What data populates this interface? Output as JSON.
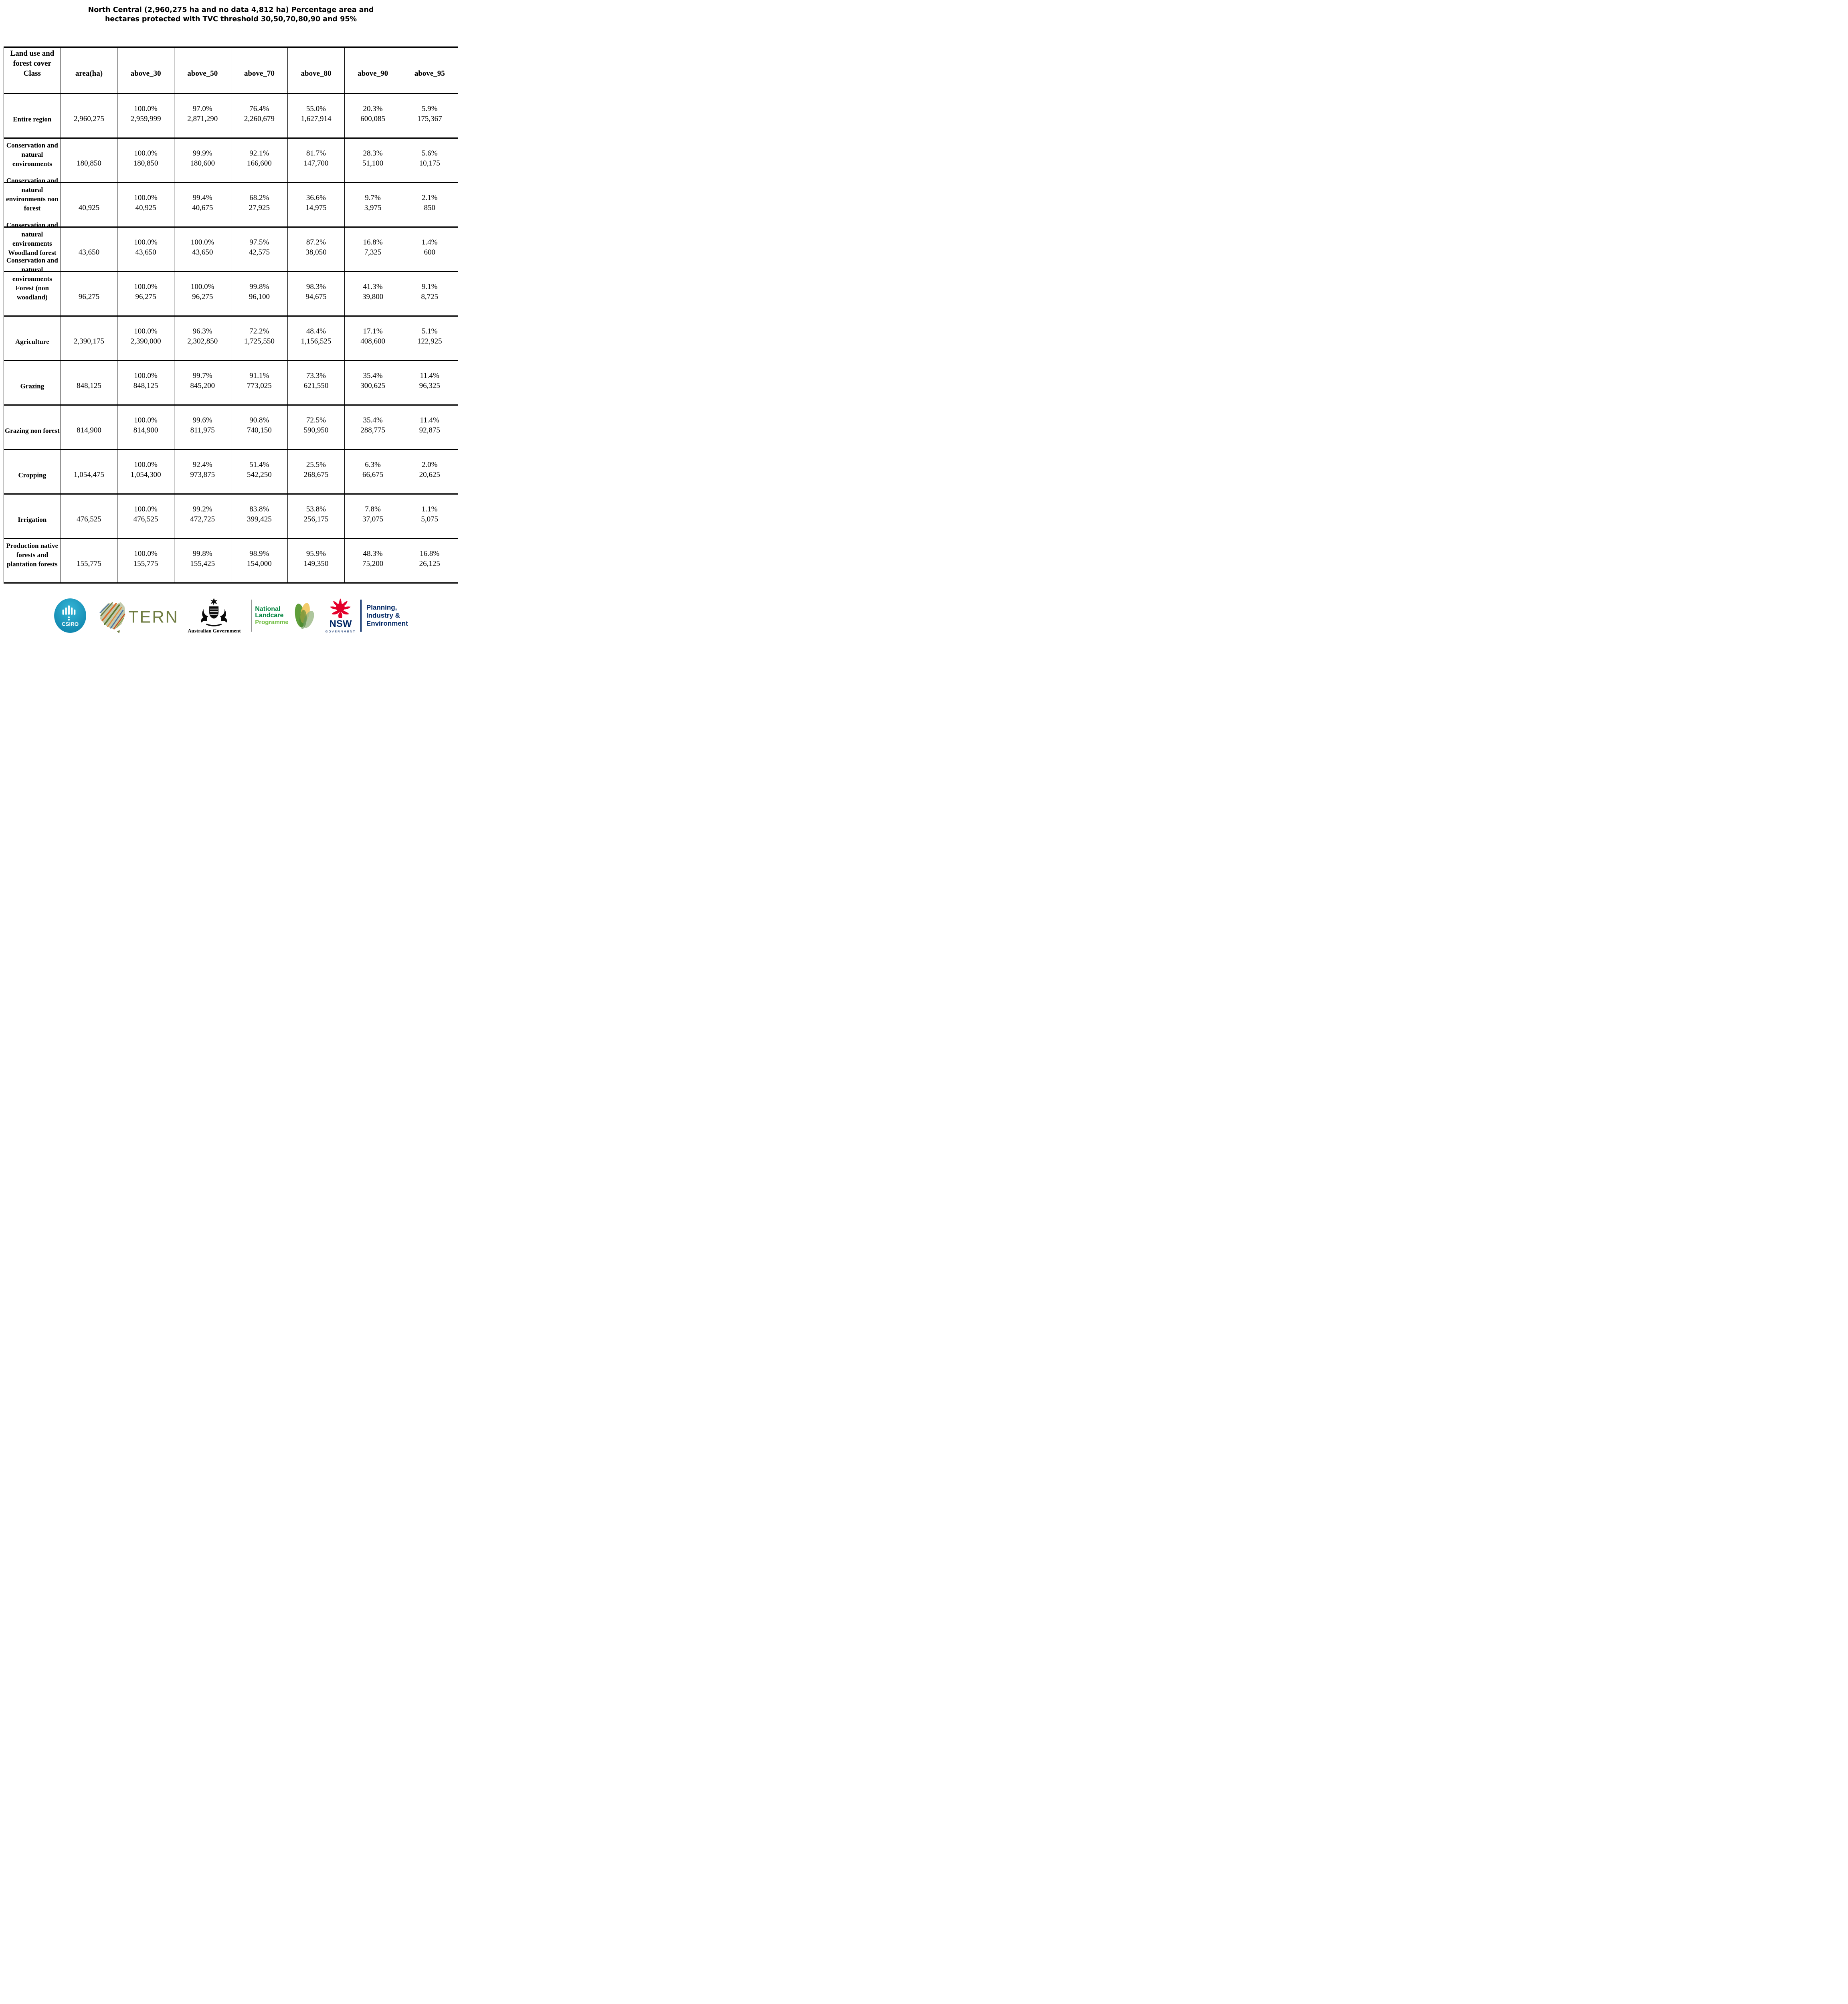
{
  "title": "North Central (2,960,275 ha and no data 4,812 ha) Percentage area and hectares protected with TVC threshold 30,50,70,80,90 and 95%",
  "table": {
    "headers": [
      "Land use and forest cover Class",
      "area(ha)",
      "above_30",
      "above_50",
      "above_70",
      "above_80",
      "above_90",
      "above_95"
    ],
    "rows": [
      {
        "label": "Entire region",
        "area": "2,960,275",
        "cells": [
          {
            "pct": "100.0%",
            "ha": "2,959,999"
          },
          {
            "pct": "97.0%",
            "ha": "2,871,290"
          },
          {
            "pct": "76.4%",
            "ha": "2,260,679"
          },
          {
            "pct": "55.0%",
            "ha": "1,627,914"
          },
          {
            "pct": "20.3%",
            "ha": "600,085"
          },
          {
            "pct": "5.9%",
            "ha": "175,367"
          }
        ]
      },
      {
        "label": "Conservation and natural environments",
        "area": "180,850",
        "cells": [
          {
            "pct": "100.0%",
            "ha": "180,850"
          },
          {
            "pct": "99.9%",
            "ha": "180,600"
          },
          {
            "pct": "92.1%",
            "ha": "166,600"
          },
          {
            "pct": "81.7%",
            "ha": "147,700"
          },
          {
            "pct": "28.3%",
            "ha": "51,100"
          },
          {
            "pct": "5.6%",
            "ha": "10,175"
          }
        ]
      },
      {
        "label": "Conservation and natural environments non forest",
        "area": "40,925",
        "cells": [
          {
            "pct": "100.0%",
            "ha": "40,925"
          },
          {
            "pct": "99.4%",
            "ha": "40,675"
          },
          {
            "pct": "68.2%",
            "ha": "27,925"
          },
          {
            "pct": "36.6%",
            "ha": "14,975"
          },
          {
            "pct": "9.7%",
            "ha": "3,975"
          },
          {
            "pct": "2.1%",
            "ha": "850"
          }
        ]
      },
      {
        "label": "Conservation and natural environments Woodland forest",
        "area": "43,650",
        "cells": [
          {
            "pct": "100.0%",
            "ha": "43,650"
          },
          {
            "pct": "100.0%",
            "ha": "43,650"
          },
          {
            "pct": "97.5%",
            "ha": "42,575"
          },
          {
            "pct": "87.2%",
            "ha": "38,050"
          },
          {
            "pct": "16.8%",
            "ha": "7,325"
          },
          {
            "pct": "1.4%",
            "ha": "600"
          }
        ]
      },
      {
        "label": "Conservation and natural environments Forest (non woodland)",
        "area": "96,275",
        "cells": [
          {
            "pct": "100.0%",
            "ha": "96,275"
          },
          {
            "pct": "100.0%",
            "ha": "96,275"
          },
          {
            "pct": "99.8%",
            "ha": "96,100"
          },
          {
            "pct": "98.3%",
            "ha": "94,675"
          },
          {
            "pct": "41.3%",
            "ha": "39,800"
          },
          {
            "pct": "9.1%",
            "ha": "8,725"
          }
        ]
      },
      {
        "label": "Agriculture",
        "area": "2,390,175",
        "cells": [
          {
            "pct": "100.0%",
            "ha": "2,390,000"
          },
          {
            "pct": "96.3%",
            "ha": "2,302,850"
          },
          {
            "pct": "72.2%",
            "ha": "1,725,550"
          },
          {
            "pct": "48.4%",
            "ha": "1,156,525"
          },
          {
            "pct": "17.1%",
            "ha": "408,600"
          },
          {
            "pct": "5.1%",
            "ha": "122,925"
          }
        ]
      },
      {
        "label": "Grazing",
        "area": "848,125",
        "cells": [
          {
            "pct": "100.0%",
            "ha": "848,125"
          },
          {
            "pct": "99.7%",
            "ha": "845,200"
          },
          {
            "pct": "91.1%",
            "ha": "773,025"
          },
          {
            "pct": "73.3%",
            "ha": "621,550"
          },
          {
            "pct": "35.4%",
            "ha": "300,625"
          },
          {
            "pct": "11.4%",
            "ha": "96,325"
          }
        ]
      },
      {
        "label": "Grazing non forest",
        "area": "814,900",
        "cells": [
          {
            "pct": "100.0%",
            "ha": "814,900"
          },
          {
            "pct": "99.6%",
            "ha": "811,975"
          },
          {
            "pct": "90.8%",
            "ha": "740,150"
          },
          {
            "pct": "72.5%",
            "ha": "590,950"
          },
          {
            "pct": "35.4%",
            "ha": "288,775"
          },
          {
            "pct": "11.4%",
            "ha": "92,875"
          }
        ]
      },
      {
        "label": "Cropping",
        "area": "1,054,475",
        "cells": [
          {
            "pct": "100.0%",
            "ha": "1,054,300"
          },
          {
            "pct": "92.4%",
            "ha": "973,875"
          },
          {
            "pct": "51.4%",
            "ha": "542,250"
          },
          {
            "pct": "25.5%",
            "ha": "268,675"
          },
          {
            "pct": "6.3%",
            "ha": "66,675"
          },
          {
            "pct": "2.0%",
            "ha": "20,625"
          }
        ]
      },
      {
        "label": "Irrigation",
        "area": "476,525",
        "cells": [
          {
            "pct": "100.0%",
            "ha": "476,525"
          },
          {
            "pct": "99.2%",
            "ha": "472,725"
          },
          {
            "pct": "83.8%",
            "ha": "399,425"
          },
          {
            "pct": "53.8%",
            "ha": "256,175"
          },
          {
            "pct": "7.8%",
            "ha": "37,075"
          },
          {
            "pct": "1.1%",
            "ha": "5,075"
          }
        ]
      },
      {
        "label": "Production native forests and plantation forests",
        "area": "155,775",
        "cells": [
          {
            "pct": "100.0%",
            "ha": "155,775"
          },
          {
            "pct": "99.8%",
            "ha": "155,425"
          },
          {
            "pct": "98.9%",
            "ha": "154,000"
          },
          {
            "pct": "95.9%",
            "ha": "149,350"
          },
          {
            "pct": "48.3%",
            "ha": "75,200"
          },
          {
            "pct": "16.8%",
            "ha": "26,125"
          }
        ]
      }
    ]
  },
  "footer": {
    "csiro_label": "CSIRO",
    "tern_label": "TERN",
    "ausgov_label": "Australian Government",
    "landcare": {
      "line1": "National",
      "line2": "Landcare",
      "line3": "Programme"
    },
    "nsw": {
      "name": "NSW",
      "gov": "GOVERNMENT"
    },
    "dept": {
      "line1": "Planning,",
      "line2": "Industry &",
      "line3": "Environment"
    }
  },
  "colors": {
    "border": "#000000",
    "csiro_teal": "#0e86ad",
    "tern_olive": "#6f7c42",
    "landcare_green": "#00843d",
    "landcare_light_green": "#72bf44",
    "nsw_red": "#e4002b",
    "nsw_navy": "#002664"
  }
}
